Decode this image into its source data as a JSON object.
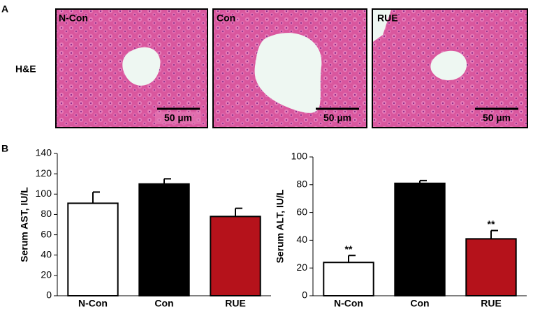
{
  "panel_a": {
    "label": "A",
    "stain": "H&E",
    "images": [
      {
        "label": "N-Con",
        "scale": "50 µm"
      },
      {
        "label": "Con",
        "scale": "50 µm"
      },
      {
        "label": "RUE",
        "scale": "50 µm"
      }
    ]
  },
  "panel_b": {
    "label": "B"
  },
  "chart_data": [
    {
      "type": "bar",
      "y_label": "Serum AST, IU/L",
      "categories": [
        "N-Con",
        "Con",
        "RUE"
      ],
      "series": [
        {
          "values": [
            91,
            110,
            78
          ],
          "errors": [
            11,
            5,
            8
          ],
          "colors": [
            "#ffffff",
            "#000000",
            "#b5121b"
          ]
        }
      ],
      "ylim": [
        0,
        140
      ],
      "yticks": [
        0,
        20,
        40,
        60,
        80,
        100,
        120,
        140
      ]
    },
    {
      "type": "bar",
      "y_label": "Serum ALT, IU/L",
      "categories": [
        "N-Con",
        "Con",
        "RUE"
      ],
      "series": [
        {
          "values": [
            24,
            81,
            41
          ],
          "errors": [
            5,
            2,
            6
          ],
          "colors": [
            "#ffffff",
            "#000000",
            "#b5121b"
          ]
        }
      ],
      "significance": [
        "**",
        null,
        "**"
      ],
      "ylim": [
        0,
        100
      ],
      "yticks": [
        0,
        20,
        40,
        60,
        80,
        100
      ]
    }
  ]
}
